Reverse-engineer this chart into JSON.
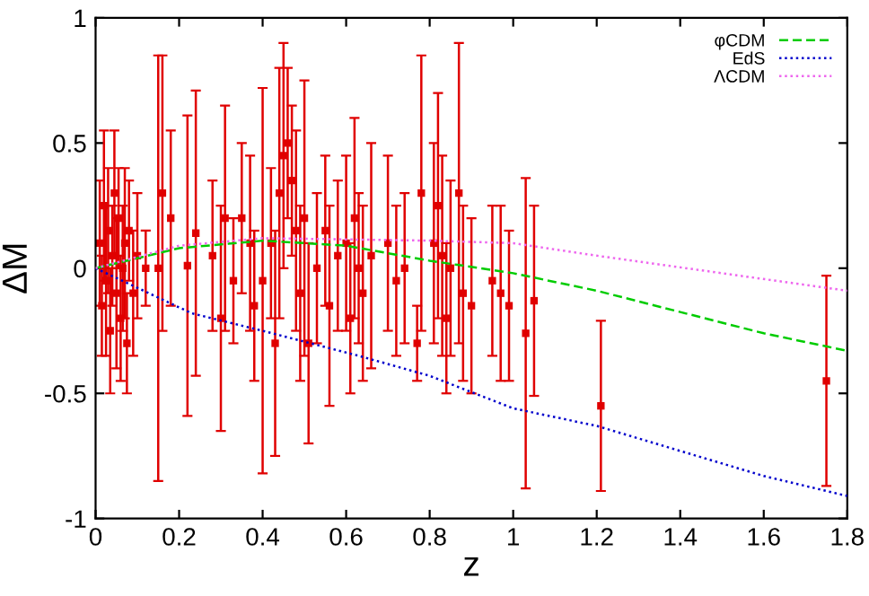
{
  "chart_data": {
    "type": "scatter",
    "xlabel": "z",
    "ylabel": "ΔM",
    "xlim": [
      0,
      1.8
    ],
    "ylim": [
      -1,
      1
    ],
    "xticks": [
      0,
      0.2,
      0.4,
      0.6,
      0.8,
      1,
      1.2,
      1.4,
      1.6,
      1.8
    ],
    "yticks": [
      -1,
      -0.5,
      0,
      0.5,
      1
    ],
    "grid": false,
    "legend": "top right",
    "series": [
      {
        "color": "#e00000",
        "marker": "square",
        "x": [
          0.01,
          0.015,
          0.02,
          0.025,
          0.03,
          0.035,
          0.04,
          0.045,
          0.05,
          0.055,
          0.06,
          0.065,
          0.07,
          0.075,
          0.08,
          0.09,
          0.1,
          0.12,
          0.15,
          0.16,
          0.18,
          0.22,
          0.24,
          0.28,
          0.3,
          0.31,
          0.33,
          0.35,
          0.37,
          0.38,
          0.4,
          0.42,
          0.43,
          0.44,
          0.45,
          0.46,
          0.47,
          0.48,
          0.49,
          0.5,
          0.51,
          0.53,
          0.55,
          0.56,
          0.58,
          0.6,
          0.61,
          0.62,
          0.63,
          0.64,
          0.66,
          0.7,
          0.72,
          0.74,
          0.77,
          0.78,
          0.81,
          0.82,
          0.83,
          0.84,
          0.85,
          0.87,
          0.88,
          0.9,
          0.95,
          0.97,
          0.99,
          1.03,
          1.05,
          1.21,
          1.75
        ],
        "values": [
          0.1,
          -0.15,
          0.25,
          -0.05,
          0.15,
          -0.25,
          0.05,
          0.3,
          -0.1,
          0.2,
          -0.2,
          0.0,
          0.1,
          -0.3,
          0.15,
          -0.1,
          0.05,
          0.0,
          0.0,
          0.3,
          0.2,
          0.01,
          0.14,
          0.05,
          -0.2,
          0.2,
          -0.05,
          0.2,
          0.1,
          -0.15,
          -0.05,
          0.1,
          -0.3,
          0.3,
          0.45,
          0.5,
          0.35,
          0.15,
          -0.1,
          0.2,
          -0.3,
          0.0,
          0.15,
          -0.15,
          0.05,
          0.1,
          -0.2,
          0.2,
          0.0,
          -0.1,
          0.05,
          0.1,
          -0.05,
          0.0,
          -0.3,
          0.3,
          0.1,
          0.25,
          0.05,
          -0.2,
          0.0,
          0.3,
          -0.1,
          -0.15,
          -0.05,
          -0.1,
          -0.15,
          -0.26,
          -0.13,
          -0.55,
          -0.45
        ],
        "errors": [
          0.25,
          0.2,
          0.3,
          0.3,
          0.25,
          0.25,
          0.2,
          0.25,
          0.3,
          0.2,
          0.25,
          0.25,
          0.3,
          0.2,
          0.2,
          0.25,
          0.25,
          0.15,
          0.85,
          0.55,
          0.35,
          0.6,
          0.57,
          0.3,
          0.45,
          0.45,
          0.25,
          0.3,
          0.35,
          0.3,
          0.77,
          0.3,
          0.45,
          0.5,
          0.45,
          0.3,
          0.3,
          0.4,
          0.35,
          0.55,
          0.4,
          0.3,
          0.3,
          0.4,
          0.3,
          0.35,
          0.3,
          0.4,
          0.3,
          0.35,
          0.45,
          0.35,
          0.3,
          0.3,
          0.15,
          0.55,
          0.4,
          0.45,
          0.4,
          0.3,
          0.35,
          0.6,
          0.35,
          0.35,
          0.3,
          0.35,
          0.3,
          0.62,
          0.38,
          0.34,
          0.42
        ]
      },
      {
        "type": "line",
        "name": "φCDM",
        "color": "#00cc00",
        "line_style": "dashed",
        "x": [
          0,
          0.2,
          0.4,
          0.6,
          0.8,
          1.0,
          1.2,
          1.6,
          1.8
        ],
        "values": [
          0,
          0.08,
          0.11,
          0.09,
          0.03,
          -0.02,
          -0.09,
          -0.26,
          -0.33
        ]
      },
      {
        "type": "line",
        "name": "EdS",
        "color": "#0000cc",
        "line_style": "dotted",
        "x": [
          0,
          0.23,
          0.4,
          0.63,
          0.8,
          1.0,
          1.2,
          1.6,
          1.8
        ],
        "values": [
          0,
          -0.18,
          -0.25,
          -0.35,
          -0.43,
          -0.56,
          -0.63,
          -0.83,
          -0.91
        ]
      },
      {
        "type": "line",
        "name": "ΛCDM",
        "color": "#ee66ee",
        "line_style": "dotted",
        "x": [
          0,
          0.2,
          0.4,
          0.8,
          1.0,
          1.2,
          1.8
        ],
        "values": [
          0,
          0.09,
          0.12,
          0.11,
          0.1,
          0.05,
          -0.09
        ]
      }
    ]
  }
}
